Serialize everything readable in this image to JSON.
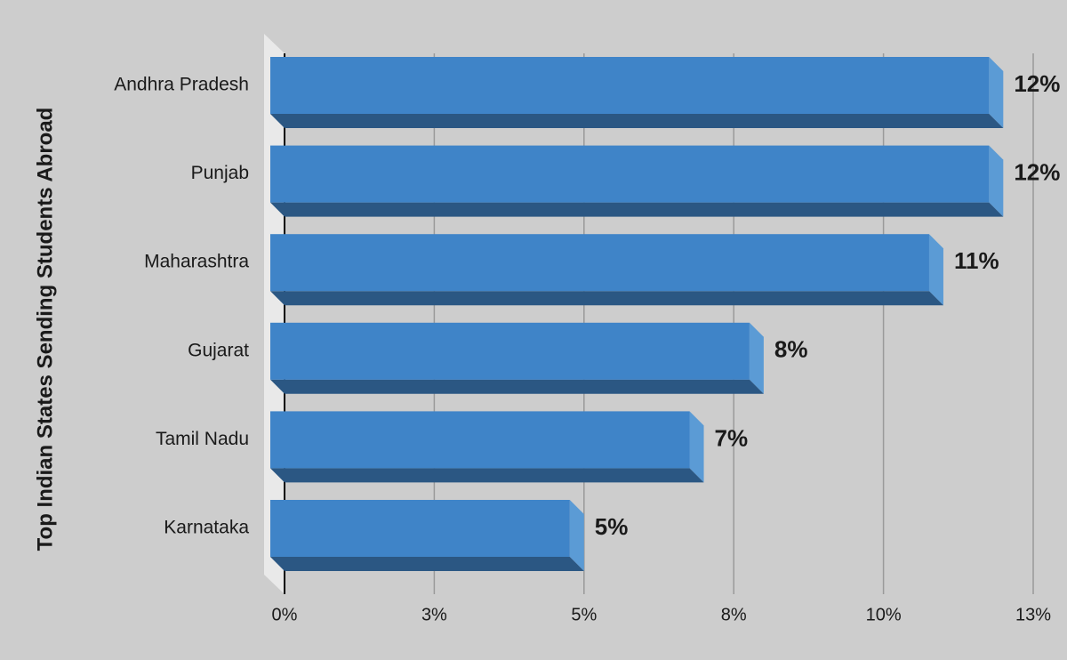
{
  "chart_data": {
    "type": "bar",
    "orientation": "horizontal",
    "y_label": "Top Indian States Sending Students Abroad",
    "categories": [
      "Andhra Pradesh",
      "Punjab",
      "Maharashtra",
      "Gujarat",
      "Tamil Nadu",
      "Karnataka"
    ],
    "values": [
      12,
      12,
      11,
      8,
      7,
      5
    ],
    "value_labels": [
      "12%",
      "12%",
      "11%",
      "8%",
      "7%",
      "5%"
    ],
    "color": "#3f84c8",
    "xlim": [
      0,
      12.5
    ],
    "xticks": [
      {
        "value": 0,
        "label": "0%"
      },
      {
        "value": 2.5,
        "label": "3%"
      },
      {
        "value": 5,
        "label": "5%"
      },
      {
        "value": 7.5,
        "label": "8%"
      },
      {
        "value": 10,
        "label": "10%"
      },
      {
        "value": 12.5,
        "label": "13%"
      }
    ],
    "grid": true
  }
}
